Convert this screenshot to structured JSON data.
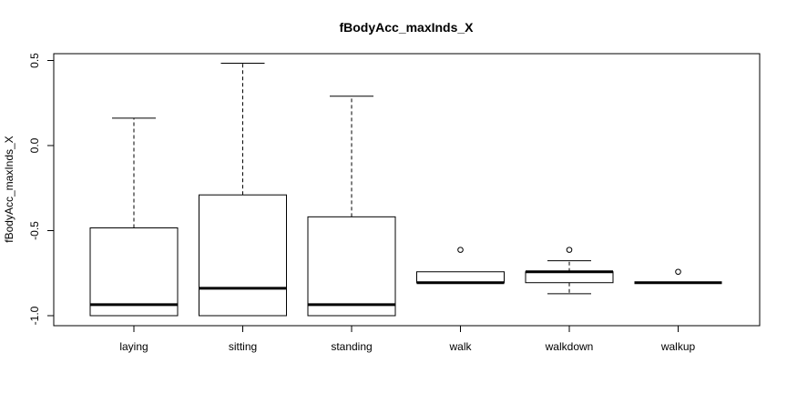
{
  "chart_data": {
    "type": "box",
    "title": "fBodyAcc_maxInds_X",
    "ylabel": "fBodyAcc_maxInds_X",
    "xlabel": "",
    "ylim": [
      -1.05,
      0.53
    ],
    "yticks": [
      -1.0,
      -0.5,
      0.0,
      0.5
    ],
    "ytick_labels": [
      "-1.0",
      "-0.5",
      "0.0",
      "0.5"
    ],
    "grid": false,
    "categories": [
      "laying",
      "sitting",
      "standing",
      "walk",
      "walkdown",
      "walkup"
    ],
    "boxes": [
      {
        "category": "laying",
        "lower_whisker": -1.0,
        "q1": -1.0,
        "median": -0.935,
        "q3": -0.484,
        "upper_whisker": 0.161,
        "outliers": []
      },
      {
        "category": "sitting",
        "lower_whisker": -1.0,
        "q1": -1.0,
        "median": -0.839,
        "q3": -0.29,
        "upper_whisker": 0.484,
        "outliers": []
      },
      {
        "category": "standing",
        "lower_whisker": -1.0,
        "q1": -1.0,
        "median": -0.935,
        "q3": -0.419,
        "upper_whisker": 0.29,
        "outliers": []
      },
      {
        "category": "walk",
        "lower_whisker": -0.806,
        "q1": -0.806,
        "median": -0.806,
        "q3": -0.742,
        "upper_whisker": -0.742,
        "outliers": [
          -0.613
        ]
      },
      {
        "category": "walkdown",
        "lower_whisker": -0.871,
        "q1": -0.806,
        "median": -0.742,
        "q3": -0.742,
        "upper_whisker": -0.677,
        "outliers": [
          -0.613
        ]
      },
      {
        "category": "walkup",
        "lower_whisker": -0.806,
        "q1": -0.806,
        "median": -0.806,
        "q3": -0.806,
        "upper_whisker": -0.806,
        "outliers": [
          -0.742
        ]
      }
    ]
  }
}
